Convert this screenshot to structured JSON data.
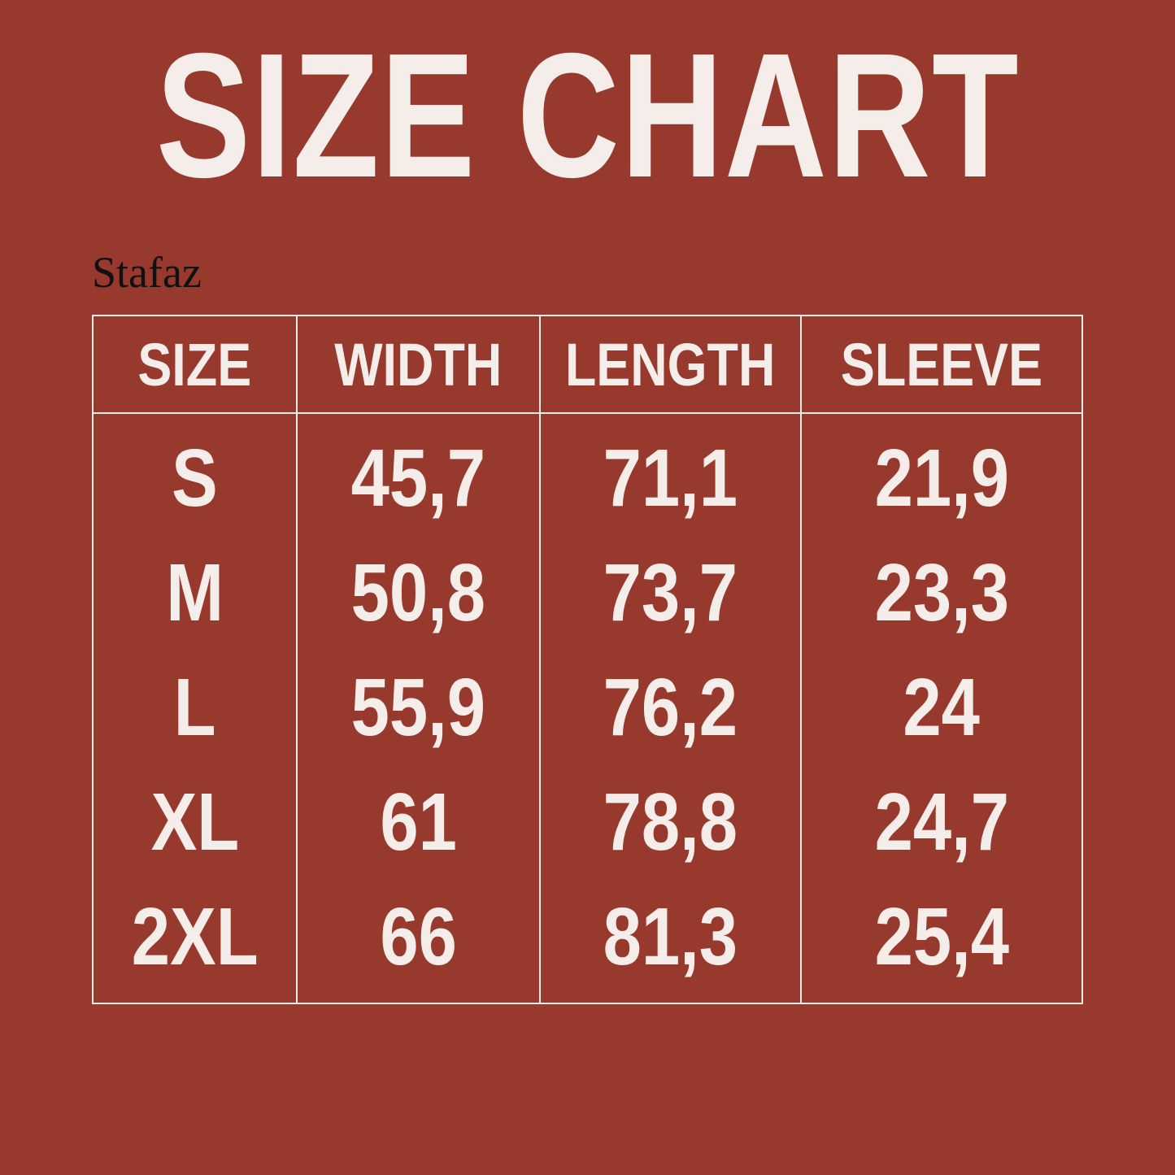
{
  "title": "SIZE CHART",
  "brand": "Stafaz",
  "colors": {
    "background": "#97392d",
    "text": "#f4ede9",
    "brand": "#111111"
  },
  "table": {
    "headers": [
      "SIZE",
      "WIDTH",
      "LENGTH",
      "SLEEVE"
    ],
    "columns": [
      [
        "S",
        "M",
        "L",
        "XL",
        "2XL"
      ],
      [
        "45,7",
        "50,8",
        "55,9",
        "61",
        "66"
      ],
      [
        "71,1",
        "73,7",
        "76,2",
        "78,8",
        "81,3"
      ],
      [
        "21,9",
        "23,3",
        "24",
        "24,7",
        "25,4"
      ]
    ]
  }
}
